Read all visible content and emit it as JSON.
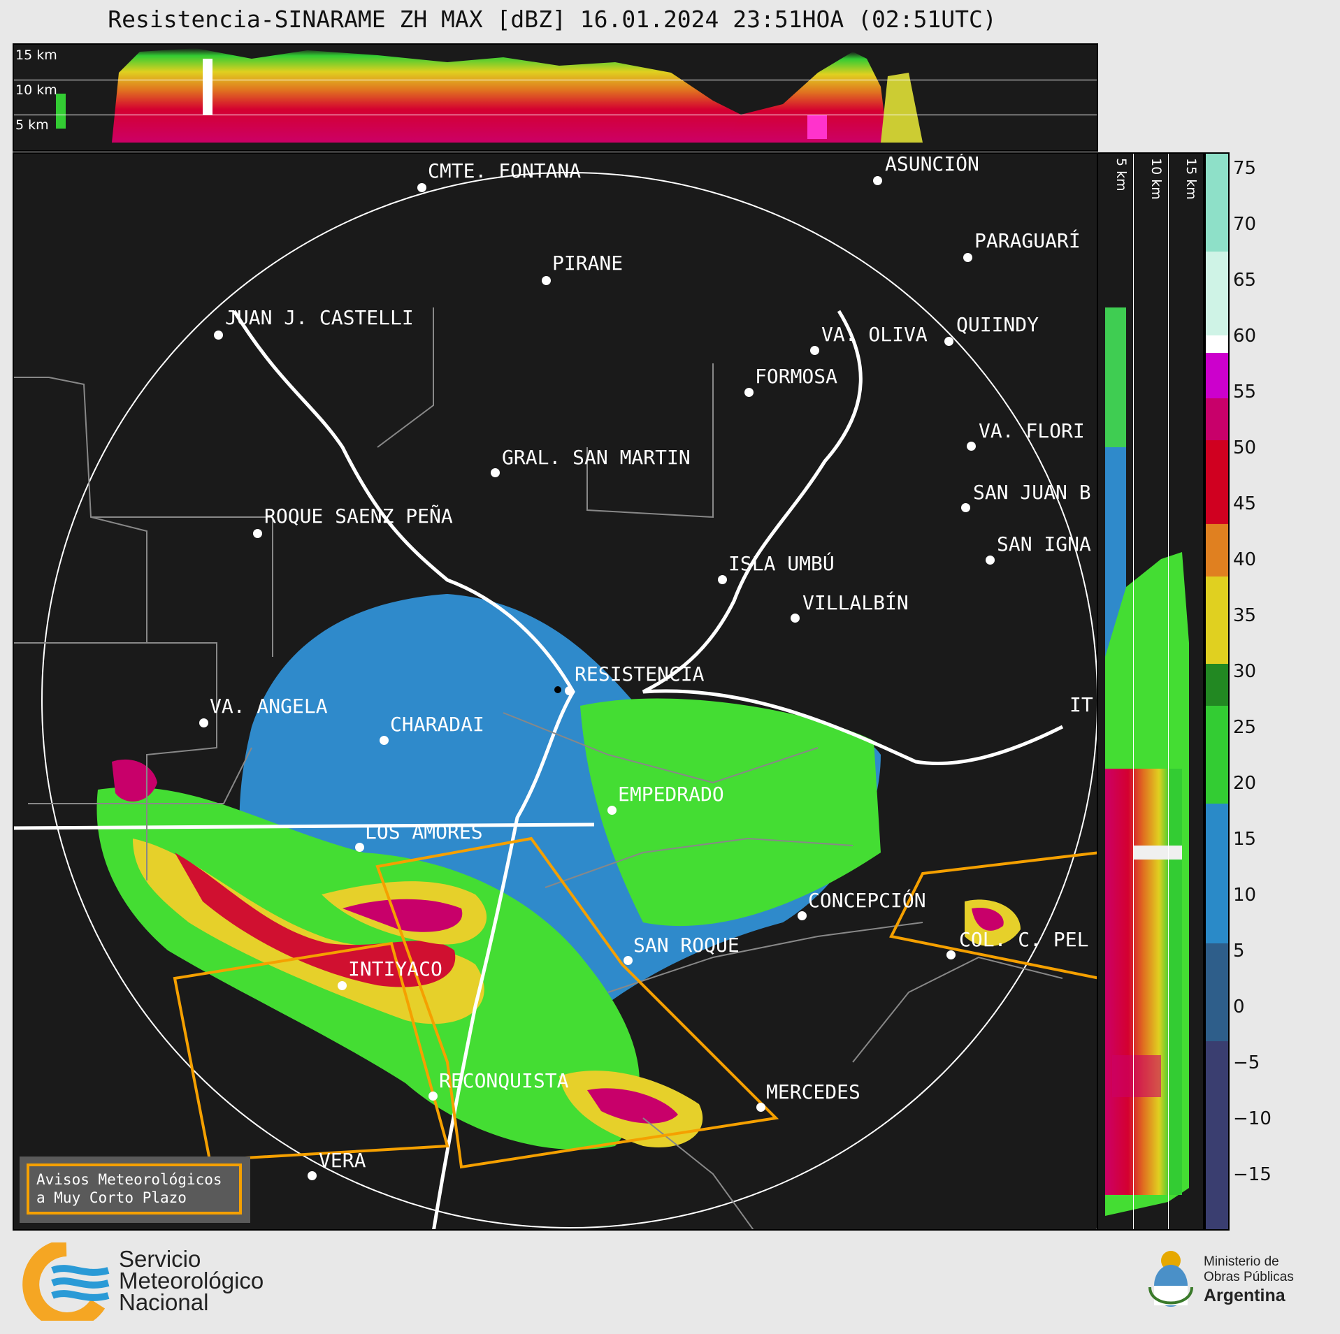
{
  "header": {
    "title": "Resistencia-SINARAME ZH MAX [dBZ] 16.01.2024 23:51HOA (02:51UTC)"
  },
  "top_section": {
    "altitude_labels": [
      "15 km",
      "10 km",
      "5 km"
    ]
  },
  "side_section": {
    "altitude_labels": [
      "5 km",
      "10 km",
      "15 km"
    ]
  },
  "colorbar": {
    "ticks": [
      "75",
      "70",
      "65",
      "60",
      "55",
      "50",
      "45",
      "40",
      "35",
      "30",
      "25",
      "20",
      "15",
      "10",
      "5",
      "0",
      "−5",
      "−10",
      "−15"
    ],
    "units": "dBZ"
  },
  "cities": [
    {
      "name": "CMTE. FONTANA"
    },
    {
      "name": "ASUNCIÓN"
    },
    {
      "name": "PIRANE"
    },
    {
      "name": "PARAGUARÍ"
    },
    {
      "name": "JUAN J. CASTELLI"
    },
    {
      "name": "VA. OLIVA"
    },
    {
      "name": "QUIINDY"
    },
    {
      "name": "FORMOSA"
    },
    {
      "name": "VA. FLORI"
    },
    {
      "name": "GRAL. SAN MARTIN"
    },
    {
      "name": "SAN JUAN B"
    },
    {
      "name": "ROQUE SAENZ PEÑA"
    },
    {
      "name": "SAN IGNA"
    },
    {
      "name": "ISLA UMBÚ"
    },
    {
      "name": "VILLALBÍN"
    },
    {
      "name": "RESISTENCIA"
    },
    {
      "name": "VA. ANGELA"
    },
    {
      "name": "CHARADAI"
    },
    {
      "name": "IT"
    },
    {
      "name": "EMPEDRADO"
    },
    {
      "name": "LOS AMORES"
    },
    {
      "name": "CONCEPCIÓN"
    },
    {
      "name": "SAN ROQUE"
    },
    {
      "name": "COL. C. PEL"
    },
    {
      "name": "INTIYACO"
    },
    {
      "name": "RECONQUISTA"
    },
    {
      "name": "MERCEDES"
    },
    {
      "name": "VERA"
    }
  ],
  "legend": {
    "line1": "Avisos Meteorológicos",
    "line2": "a Muy Corto Plazo"
  },
  "footer": {
    "smn_line1": "Servicio",
    "smn_line2": "Meteorológico",
    "smn_line3": "Nacional",
    "ministry_line1": "Ministerio de",
    "ministry_line2": "Obras Públicas",
    "ministry_line3": "Argentina"
  }
}
